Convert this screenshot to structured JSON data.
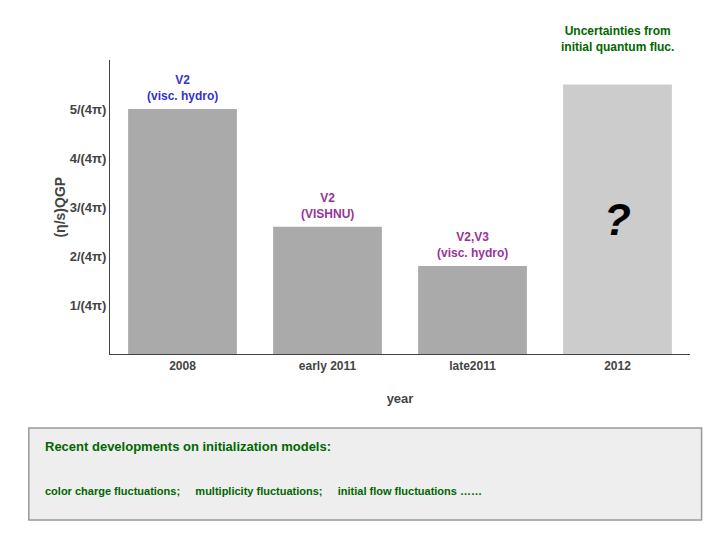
{
  "chart_data": {
    "type": "bar",
    "categories": [
      "2008",
      "early 2011",
      "late2011",
      "2012"
    ],
    "values": [
      5.0,
      2.6,
      1.8,
      5.5
    ],
    "colors": [
      "#aaaaaa",
      "#aaaaaa",
      "#aaaaaa",
      "#cccccc"
    ],
    "xlabel": "year",
    "ylabel": "(η/s)QGP",
    "ylim": [
      0,
      6.0
    ],
    "yticks": [
      {
        "value": 1,
        "label": "1/(4π)"
      },
      {
        "value": 2,
        "label": "2/(4π)"
      },
      {
        "value": 3,
        "label": "3/(4π)"
      },
      {
        "value": 4,
        "label": "4/(4π)"
      },
      {
        "value": 5,
        "label": "5/(4π)"
      }
    ],
    "grid": false,
    "bar_labels": [
      {
        "category": "2008",
        "lines": [
          "V2",
          "(visc. hydro)"
        ],
        "color": "#3333cc"
      },
      {
        "category": "early 2011",
        "lines": [
          "V2",
          "(VISHNU)"
        ],
        "color": "#993399"
      },
      {
        "category": "late2011",
        "lines": [
          "V2,V3",
          "(visc. hydro)"
        ],
        "color": "#993399"
      }
    ],
    "uncertainty_label": {
      "category": "2012",
      "lines": [
        "Uncertainties from",
        "initial quantum fluc."
      ],
      "color": "#006600"
    },
    "question_mark": {
      "category": "2012",
      "text": "?",
      "color": "#000000"
    },
    "box": {
      "title": "Recent developments on initialization models:",
      "text": "color charge fluctuations;     multiplicity fluctuations;     initial flow fluctuations ……",
      "color": "#006600",
      "background": "#eeeeee"
    }
  }
}
